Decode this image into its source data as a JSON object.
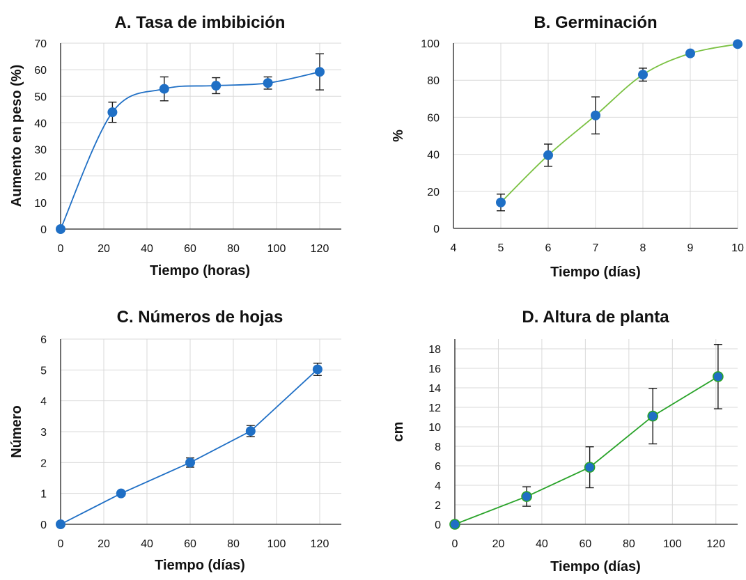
{
  "figure": {
    "marker_color": "#1f6fc5",
    "error_bar_color": "#1a1a1a",
    "grid": true
  },
  "chart_data": [
    {
      "id": "A",
      "type": "scatter",
      "title": "A. Tasa de imbibición",
      "xlabel": "Tiempo (horas)",
      "ylabel": "Aumento en peso (%)",
      "xlim": [
        0,
        130
      ],
      "ylim": [
        0,
        70
      ],
      "xticks": [
        0,
        20,
        40,
        60,
        80,
        100,
        120
      ],
      "yticks": [
        0,
        10,
        20,
        30,
        40,
        50,
        60,
        70
      ],
      "smooth": true,
      "line_color": "#1f6fc5",
      "marker_color": "#1f6fc5",
      "points": [
        {
          "x": 0,
          "y": 0,
          "err": null
        },
        {
          "x": 24,
          "y": 44,
          "err": 3.8
        },
        {
          "x": 48,
          "y": 52.8,
          "err": 4.5
        },
        {
          "x": 72,
          "y": 54,
          "err": 3
        },
        {
          "x": 96,
          "y": 55,
          "err": 2.3
        },
        {
          "x": 120,
          "y": 59.2,
          "err": 6.8
        }
      ]
    },
    {
      "id": "B",
      "type": "scatter",
      "title": "B. Germinación",
      "xlabel": "Tiempo (días)",
      "ylabel": "%",
      "xlim": [
        4,
        10
      ],
      "ylim": [
        0,
        100
      ],
      "xticks": [
        4,
        5,
        6,
        7,
        8,
        9,
        10
      ],
      "yticks": [
        0,
        20,
        40,
        60,
        80,
        100
      ],
      "smooth": true,
      "line_color": "#7ac142",
      "marker_color": "#1f6fc5",
      "points": [
        {
          "x": 5,
          "y": 14,
          "err": 4.5
        },
        {
          "x": 6,
          "y": 39.5,
          "err": 6
        },
        {
          "x": 7,
          "y": 61,
          "err": 10
        },
        {
          "x": 8,
          "y": 83,
          "err": 3.5
        },
        {
          "x": 9,
          "y": 94.5,
          "err": null
        },
        {
          "x": 10,
          "y": 99.5,
          "err": null
        }
      ]
    },
    {
      "id": "C",
      "type": "line",
      "title": "C. Números de hojas",
      "xlabel": "Tiempo (días)",
      "ylabel": "Número",
      "xlim": [
        0,
        130
      ],
      "ylim": [
        0,
        6
      ],
      "xticks": [
        0,
        20,
        40,
        60,
        80,
        100,
        120
      ],
      "yticks": [
        0,
        1,
        2,
        3,
        4,
        5,
        6
      ],
      "smooth": false,
      "line_color": "#1f6fc5",
      "marker_color": "#1f6fc5",
      "points": [
        {
          "x": 0,
          "y": 0,
          "err": null
        },
        {
          "x": 28,
          "y": 1,
          "err": null
        },
        {
          "x": 60,
          "y": 2,
          "err": 0.15
        },
        {
          "x": 88,
          "y": 3.02,
          "err": 0.18
        },
        {
          "x": 119,
          "y": 5.02,
          "err": 0.2
        }
      ]
    },
    {
      "id": "D",
      "type": "line",
      "title": "D. Altura de planta",
      "xlabel": "Tiempo (días)",
      "ylabel": "cm",
      "xlim": [
        0,
        130
      ],
      "ylim": [
        0,
        19
      ],
      "xticks": [
        0,
        20,
        40,
        60,
        80,
        100,
        120
      ],
      "yticks": [
        0,
        2,
        4,
        6,
        8,
        10,
        12,
        14,
        16,
        18
      ],
      "smooth": false,
      "line_color": "#29a329",
      "marker_color": "#1f6fc5",
      "marker_stroke": "#29a329",
      "points": [
        {
          "x": 0,
          "y": 0,
          "err": null
        },
        {
          "x": 33,
          "y": 2.85,
          "err": 1
        },
        {
          "x": 62,
          "y": 5.85,
          "err": 2.1
        },
        {
          "x": 91,
          "y": 11.1,
          "err": 2.85
        },
        {
          "x": 121,
          "y": 15.15,
          "err": 3.3
        }
      ]
    }
  ]
}
